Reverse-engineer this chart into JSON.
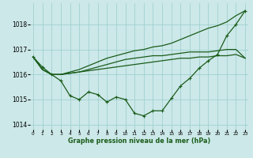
{
  "xlabel": "Graphe pression niveau de la mer (hPa)",
  "x_values": [
    0,
    1,
    2,
    3,
    4,
    5,
    6,
    7,
    8,
    9,
    10,
    11,
    12,
    13,
    14,
    15,
    16,
    17,
    18,
    19,
    20,
    21,
    22,
    23
  ],
  "line_detail": [
    1016.7,
    1016.3,
    1016.0,
    1015.75,
    1015.15,
    1015.0,
    1015.3,
    1015.2,
    1014.9,
    1015.1,
    1015.0,
    1014.45,
    1014.35,
    1014.55,
    1014.55,
    1015.05,
    1015.55,
    1015.85,
    1016.25,
    1016.55,
    1016.8,
    1017.55,
    1018.0,
    1018.55
  ],
  "line_flat1": [
    1016.7,
    1016.2,
    1016.0,
    1016.0,
    1016.05,
    1016.1,
    1016.15,
    1016.2,
    1016.25,
    1016.3,
    1016.35,
    1016.4,
    1016.45,
    1016.5,
    1016.55,
    1016.6,
    1016.65,
    1016.65,
    1016.7,
    1016.7,
    1016.75,
    1016.75,
    1016.8,
    1016.65
  ],
  "line_flat2": [
    1016.7,
    1016.2,
    1016.0,
    1016.0,
    1016.05,
    1016.1,
    1016.2,
    1016.3,
    1016.4,
    1016.5,
    1016.6,
    1016.65,
    1016.7,
    1016.75,
    1016.75,
    1016.8,
    1016.85,
    1016.9,
    1016.9,
    1016.9,
    1016.95,
    1017.0,
    1017.0,
    1016.65
  ],
  "line_steep": [
    1016.7,
    1016.2,
    1016.0,
    1016.0,
    1016.1,
    1016.2,
    1016.35,
    1016.5,
    1016.65,
    1016.75,
    1016.85,
    1016.95,
    1017.0,
    1017.1,
    1017.15,
    1017.25,
    1017.4,
    1017.55,
    1017.7,
    1017.85,
    1017.95,
    1018.1,
    1018.35,
    1018.55
  ],
  "background_color": "#cce8e8",
  "grid_color": "#99cccc",
  "line_color": "#1a5c1a",
  "ylim": [
    1013.8,
    1018.85
  ],
  "yticks": [
    1014,
    1015,
    1016,
    1017,
    1018
  ],
  "xlim": [
    -0.3,
    23.3
  ],
  "xtick_fontsize": 4.2,
  "ytick_fontsize": 5.5,
  "xlabel_fontsize": 5.8
}
